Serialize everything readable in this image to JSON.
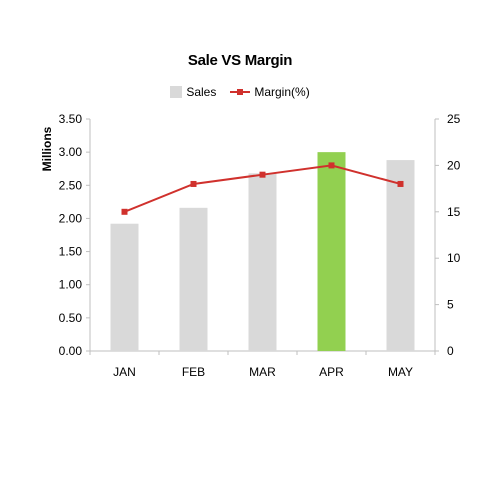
{
  "chart_data": {
    "type": "bar",
    "title": "Sale VS Margin",
    "categories": [
      "JAN",
      "FEB",
      "MAR",
      "APR",
      "MAY"
    ],
    "series": [
      {
        "name": "Sales",
        "kind": "bar",
        "axis": "left",
        "color": "#d9d9d9",
        "values": [
          1.92,
          2.16,
          2.68,
          3.0,
          2.88
        ]
      },
      {
        "name": "Margin(%)",
        "kind": "line",
        "axis": "right",
        "color": "#d0312d",
        "values": [
          15,
          18,
          19,
          20,
          18
        ]
      }
    ],
    "highlight": {
      "category": "APR",
      "color": "#92d050"
    },
    "ylabel": "Millions",
    "ylim": [
      0,
      3.5
    ],
    "y_ticks": [
      "0.00",
      "0.50",
      "1.00",
      "1.50",
      "2.00",
      "2.50",
      "3.00",
      "3.50"
    ],
    "y2lim": [
      0,
      25
    ],
    "y2_ticks": [
      "0",
      "5",
      "10",
      "15",
      "20",
      "25"
    ],
    "grid": false,
    "legend_position": "top"
  }
}
